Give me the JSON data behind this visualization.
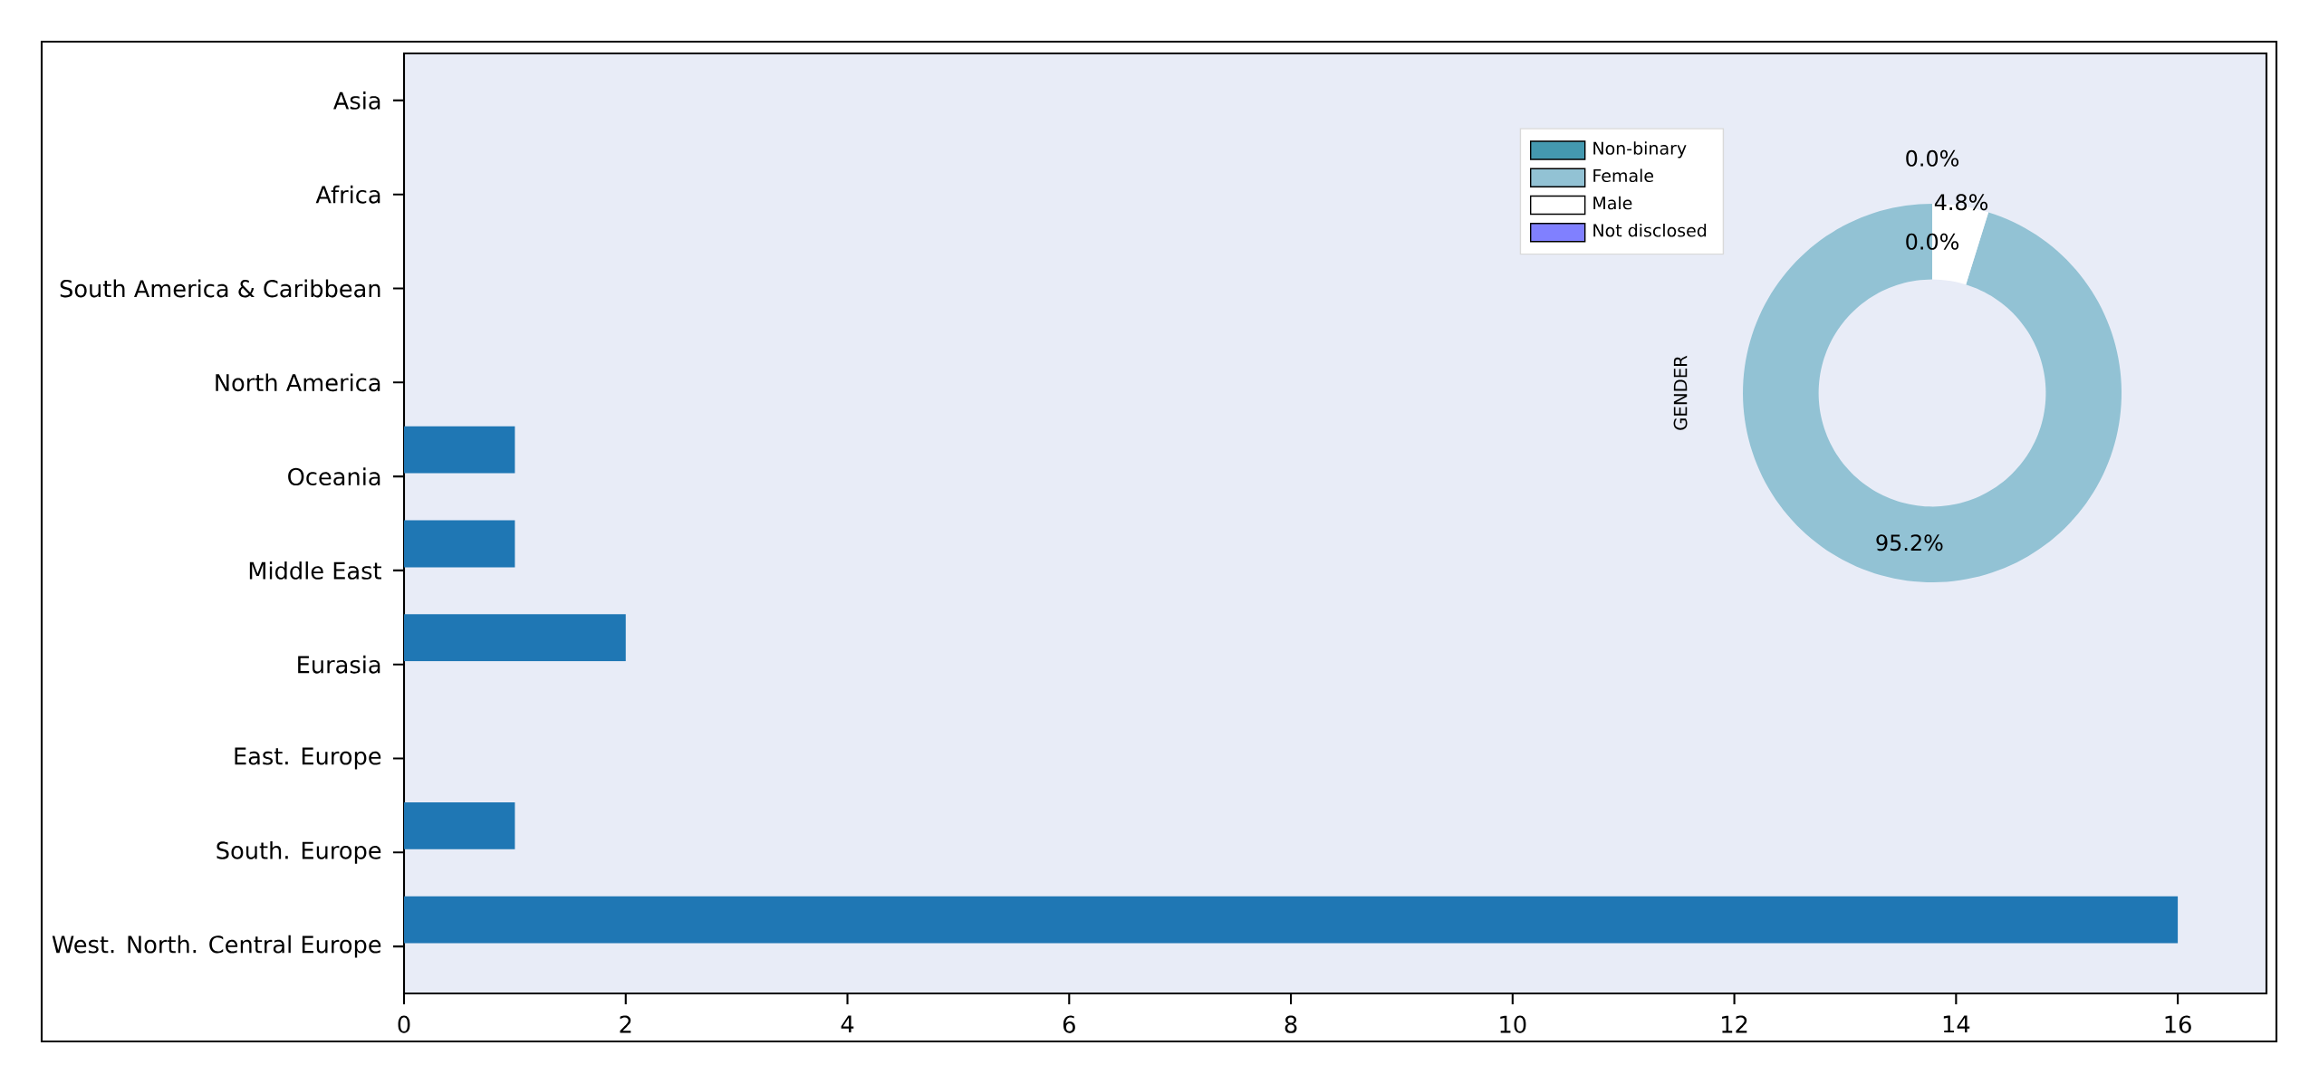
{
  "chart_data": [
    {
      "type": "bar",
      "orientation": "horizontal",
      "categories": [
        "Asia",
        "Africa",
        "South America & Caribbean",
        "North America",
        "Oceania",
        "Middle East",
        "Eurasia",
        "East. Europe",
        "South. Europe",
        "West. North. Central Europe"
      ],
      "values": [
        0,
        0,
        0,
        0,
        1,
        1,
        2,
        0,
        1,
        16
      ],
      "color": "#1f77b4",
      "xlim": [
        0,
        16.8
      ],
      "xticks": [
        0,
        2,
        4,
        6,
        8,
        10,
        12,
        14,
        16
      ],
      "grid": false
    },
    {
      "type": "donut",
      "ylabel": "GENDER",
      "categories": [
        "Non-binary",
        "Female",
        "Male",
        "Not disclosed"
      ],
      "values": [
        0,
        95.2,
        4.8,
        0
      ],
      "colors": [
        "#4499b0",
        "#92c2d4",
        "#ffffff",
        "#8080ff"
      ],
      "value_labels": [
        "0.0%",
        "95.2%",
        "4.8%",
        "0.0%"
      ],
      "legend": "top left"
    }
  ]
}
